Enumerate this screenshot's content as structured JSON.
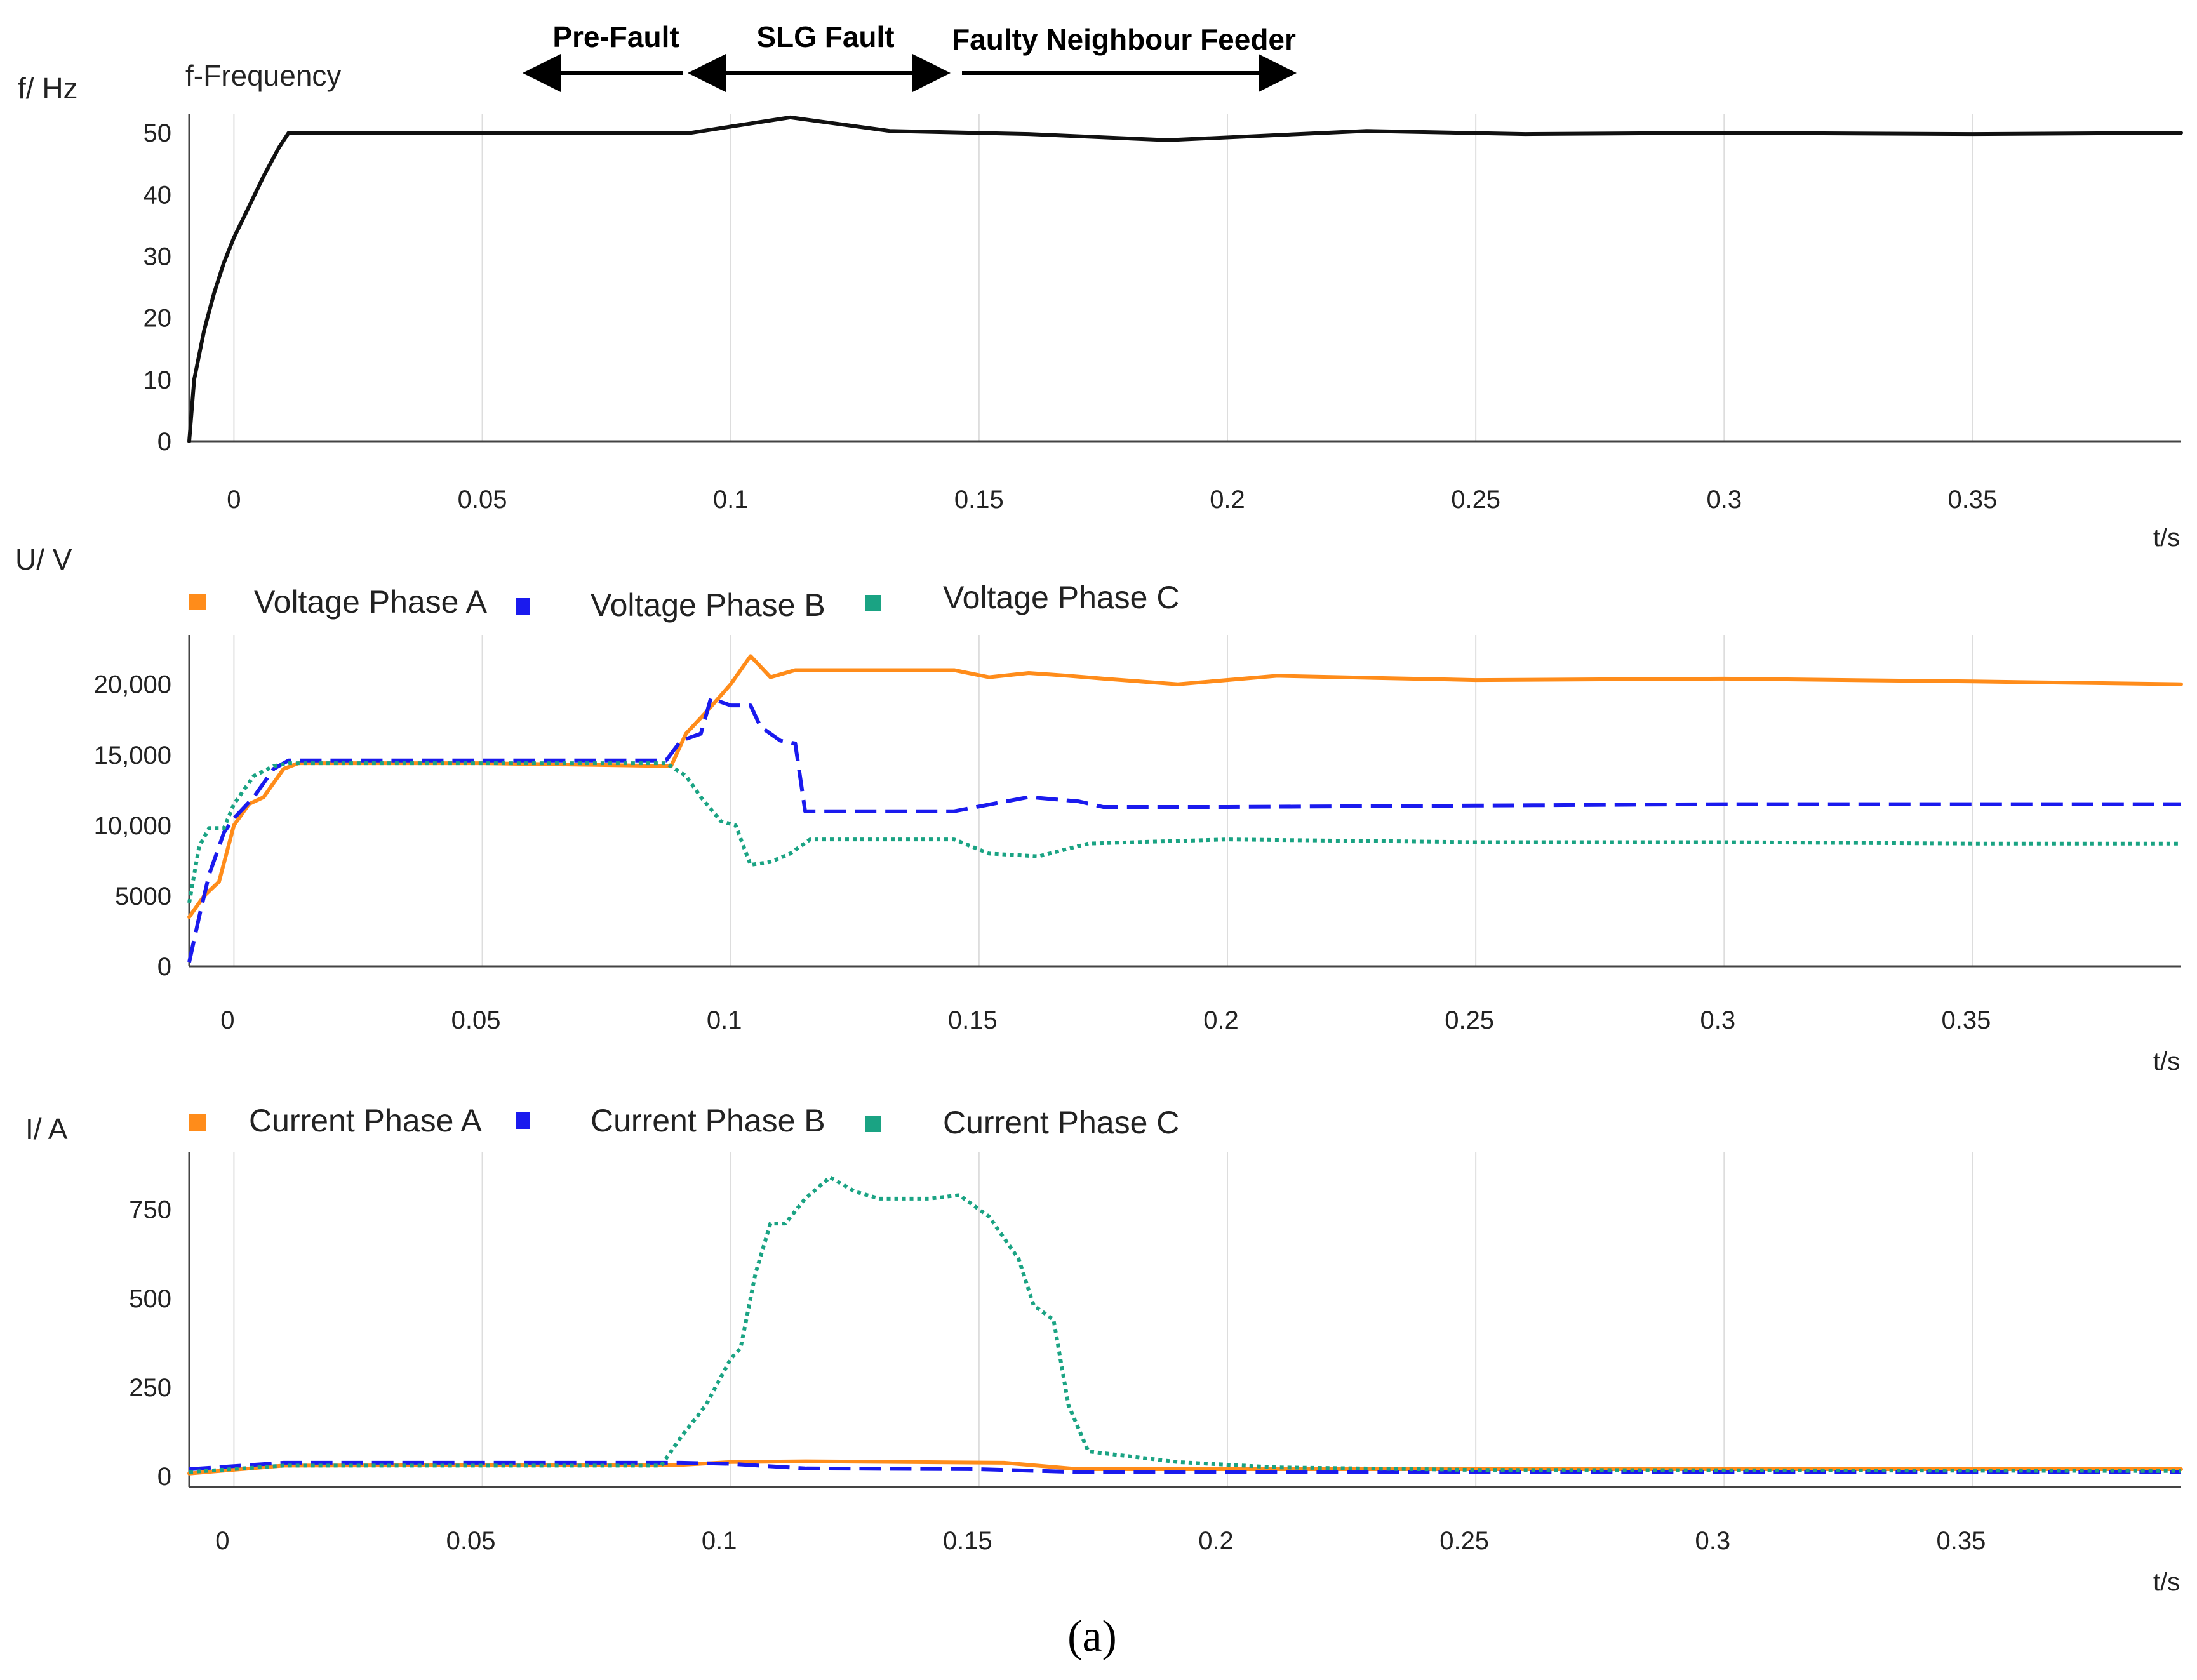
{
  "caption": "(a)",
  "colors": {
    "black": "#111111",
    "orange": "#ff8c1a",
    "blue": "#1a1aee",
    "teal": "#1aa383",
    "grid": "#dddddd"
  },
  "annotations": [
    "Pre-Fault",
    "SLG Fault",
    "Faulty  Neighbour Feeder"
  ],
  "chart_data": [
    {
      "type": "line",
      "title": "f-Frequency",
      "ylabel": "f/ Hz",
      "xlabel": "t/s",
      "xlim": [
        -0.009,
        0.392
      ],
      "ylim": [
        0,
        53
      ],
      "xticks": [
        "0",
        "0.05",
        "0.1",
        "0.15",
        "0.2",
        "0.25",
        "0.3",
        "0.35"
      ],
      "xtick_values": [
        0,
        0.05,
        0.1,
        0.15,
        0.2,
        0.25,
        0.3,
        0.35
      ],
      "yticks": [
        "0",
        "10",
        "20",
        "30",
        "40",
        "50"
      ],
      "ytick_values": [
        0,
        10,
        20,
        30,
        40,
        50
      ],
      "series": [
        {
          "name": "f-Frequency",
          "color": "#111111",
          "dash": "solid",
          "x": [
            -0.009,
            -0.008,
            -0.006,
            -0.004,
            -0.002,
            0,
            0.003,
            0.006,
            0.009,
            0.011,
            0.05,
            0.092,
            0.1,
            0.112,
            0.132,
            0.16,
            0.188,
            0.228,
            0.26,
            0.3,
            0.35,
            0.392
          ],
          "y": [
            0,
            10,
            18,
            24,
            29,
            33,
            38,
            43,
            47.5,
            50,
            50,
            50,
            51,
            52.5,
            50.3,
            49.8,
            48.8,
            50.3,
            49.8,
            50,
            49.8,
            50
          ]
        }
      ]
    },
    {
      "type": "line",
      "ylabel": "U/ V",
      "xlabel": "t/s",
      "xlim": [
        -0.009,
        0.392
      ],
      "ylim": [
        0,
        23500
      ],
      "xticks": [
        "0",
        "0.05",
        "0.1",
        "0.15",
        "0.2",
        "0.25",
        "0.3",
        "0.35"
      ],
      "xtick_values": [
        0,
        0.05,
        0.1,
        0.15,
        0.2,
        0.25,
        0.3,
        0.35
      ],
      "yticks": [
        "0",
        "5000",
        "10,000",
        "15,000",
        "20,000"
      ],
      "ytick_values": [
        0,
        5000,
        10000,
        15000,
        20000
      ],
      "legend": [
        "Voltage Phase A",
        "Voltage Phase B",
        "Voltage Phase C"
      ],
      "series": [
        {
          "name": "Voltage Phase A",
          "color": "#ff8c1a",
          "dash": "solid",
          "x": [
            -0.009,
            -0.006,
            -0.003,
            0,
            0.003,
            0.006,
            0.01,
            0.013,
            0.05,
            0.088,
            0.091,
            0.095,
            0.1,
            0.104,
            0.108,
            0.113,
            0.12,
            0.145,
            0.152,
            0.16,
            0.168,
            0.175,
            0.19,
            0.21,
            0.25,
            0.3,
            0.35,
            0.392
          ],
          "y": [
            3500,
            5000,
            6000,
            10000,
            11500,
            12000,
            14000,
            14400,
            14400,
            14200,
            16500,
            18000,
            20000,
            22000,
            20500,
            21000,
            21000,
            21000,
            20500,
            20800,
            20600,
            20400,
            20000,
            20600,
            20300,
            20400,
            20200,
            20000
          ]
        },
        {
          "name": "Voltage Phase B",
          "color": "#1a1aee",
          "dash": "dashed",
          "x": [
            -0.009,
            -0.007,
            -0.005,
            -0.002,
            0,
            0.004,
            0.008,
            0.011,
            0.05,
            0.087,
            0.09,
            0.094,
            0.096,
            0.1,
            0.104,
            0.106,
            0.11,
            0.113,
            0.115,
            0.12,
            0.145,
            0.16,
            0.17,
            0.175,
            0.2,
            0.25,
            0.3,
            0.35,
            0.392
          ],
          "y": [
            300,
            3500,
            6500,
            9500,
            10500,
            12000,
            14000,
            14600,
            14600,
            14600,
            16000,
            16500,
            19000,
            18500,
            18500,
            17000,
            16000,
            15800,
            11000,
            11000,
            11000,
            12000,
            11700,
            11300,
            11300,
            11400,
            11500,
            11500,
            11500
          ]
        },
        {
          "name": "Voltage Phase C",
          "color": "#1aa383",
          "dash": "dotted",
          "x": [
            -0.009,
            -0.007,
            -0.005,
            -0.002,
            0,
            0.004,
            0.008,
            0.011,
            0.05,
            0.087,
            0.091,
            0.094,
            0.098,
            0.101,
            0.104,
            0.108,
            0.112,
            0.116,
            0.12,
            0.145,
            0.152,
            0.162,
            0.172,
            0.2,
            0.25,
            0.3,
            0.35,
            0.392
          ],
          "y": [
            4500,
            8500,
            9800,
            9800,
            11500,
            13500,
            14200,
            14400,
            14400,
            14400,
            13500,
            12000,
            10300,
            10000,
            7200,
            7400,
            8000,
            9000,
            9000,
            9000,
            8000,
            7800,
            8700,
            9000,
            8800,
            8800,
            8700,
            8700
          ]
        }
      ]
    },
    {
      "type": "line",
      "ylabel": "I/ A",
      "xlabel": "t/s",
      "xlim": [
        -0.009,
        0.392
      ],
      "ylim": [
        -30,
        910
      ],
      "xticks": [
        "0",
        "0.05",
        "0.1",
        "0.15",
        "0.2",
        "0.25",
        "0.3",
        "0.35"
      ],
      "xtick_values": [
        0,
        0.05,
        0.1,
        0.15,
        0.2,
        0.25,
        0.3,
        0.35
      ],
      "yticks": [
        "0",
        "250",
        "500",
        "750"
      ],
      "ytick_values": [
        0,
        250,
        500,
        750
      ],
      "legend": [
        "Current Phase A",
        "Current Phase B",
        "Current Phase C"
      ],
      "series": [
        {
          "name": "Current Phase A",
          "color": "#ff8c1a",
          "dash": "solid",
          "x": [
            -0.009,
            0.01,
            0.09,
            0.1,
            0.115,
            0.155,
            0.17,
            0.25,
            0.392
          ],
          "y": [
            8,
            30,
            32,
            40,
            42,
            38,
            20,
            20,
            20
          ]
        },
        {
          "name": "Current Phase B",
          "color": "#1a1aee",
          "dash": "dashed",
          "x": [
            -0.009,
            0.01,
            0.09,
            0.1,
            0.115,
            0.15,
            0.17,
            0.25,
            0.392
          ],
          "y": [
            20,
            38,
            38,
            35,
            22,
            20,
            12,
            12,
            12
          ]
        },
        {
          "name": "Current Phase C",
          "color": "#1aa383",
          "dash": "dotted",
          "x": [
            -0.009,
            0.01,
            0.086,
            0.09,
            0.095,
            0.1,
            0.102,
            0.105,
            0.108,
            0.111,
            0.115,
            0.12,
            0.125,
            0.13,
            0.14,
            0.146,
            0.152,
            0.158,
            0.161,
            0.165,
            0.168,
            0.172,
            0.19,
            0.21,
            0.25,
            0.392
          ],
          "y": [
            12,
            30,
            30,
            110,
            200,
            330,
            360,
            570,
            710,
            710,
            780,
            840,
            800,
            780,
            780,
            790,
            730,
            610,
            480,
            440,
            200,
            70,
            40,
            25,
            18,
            15
          ]
        }
      ]
    }
  ]
}
